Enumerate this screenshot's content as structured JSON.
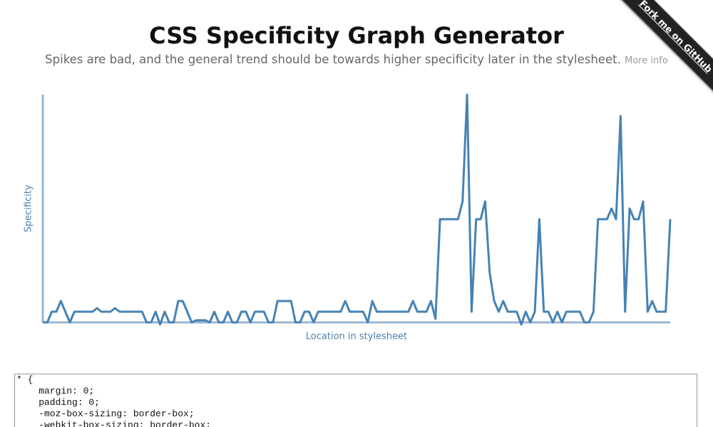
{
  "header": {
    "title": "CSS Specificity Graph Generator",
    "subtitle": "Spikes are bad, and the general trend should be towards higher specificity later in the stylesheet.",
    "more_info": "More info"
  },
  "ribbon": "Fork me on GitHub",
  "chart_data": {
    "type": "line",
    "y_label": "Specificity",
    "x_label": "Location in stylesheet",
    "ylim": [
      0,
      32
    ],
    "color": "#4682b4",
    "values": [
      0,
      0,
      1.5,
      1.5,
      3,
      1.5,
      0,
      1.5,
      1.5,
      1.5,
      1.5,
      1.5,
      2,
      1.5,
      1.5,
      1.5,
      2,
      1.5,
      1.5,
      1.5,
      1.5,
      1.5,
      1.5,
      0,
      0,
      1.5,
      -0.3,
      1.5,
      0,
      0,
      3,
      3,
      1.5,
      0,
      0.3,
      0.3,
      0.3,
      0,
      1.5,
      0,
      0,
      1.5,
      0,
      0,
      1.5,
      1.5,
      0,
      1.5,
      1.5,
      1.5,
      0,
      0,
      3,
      3,
      3,
      3,
      0,
      0,
      1.5,
      1.5,
      0,
      1.5,
      1.5,
      1.5,
      1.5,
      1.5,
      1.5,
      3,
      1.5,
      1.5,
      1.5,
      1.5,
      0,
      3,
      1.5,
      1.5,
      1.5,
      1.5,
      1.5,
      1.5,
      1.5,
      1.5,
      3,
      1.5,
      1.5,
      1.5,
      3,
      0.5,
      14.5,
      14.5,
      14.5,
      14.5,
      14.5,
      17,
      32,
      1.5,
      14.5,
      14.5,
      17,
      7,
      3,
      1.5,
      3,
      1.5,
      1.5,
      1.5,
      -0.3,
      1.5,
      0,
      1.5,
      14.5,
      1.5,
      1.5,
      0,
      1.5,
      0,
      1.5,
      1.5,
      1.5,
      1.5,
      0,
      0,
      1.5,
      14.5,
      14.5,
      14.5,
      16,
      14.5,
      29,
      1.5,
      16,
      14.5,
      14.5,
      17,
      1.5,
      3,
      1.5,
      1.5,
      1.5,
      14.5
    ]
  },
  "code": {
    "lines": [
      "* {",
      "    margin: 0;",
      "    padding: 0;",
      "    -moz-box-sizing: border-box;",
      "    -webkit-box-sizing: border-box;"
    ]
  }
}
